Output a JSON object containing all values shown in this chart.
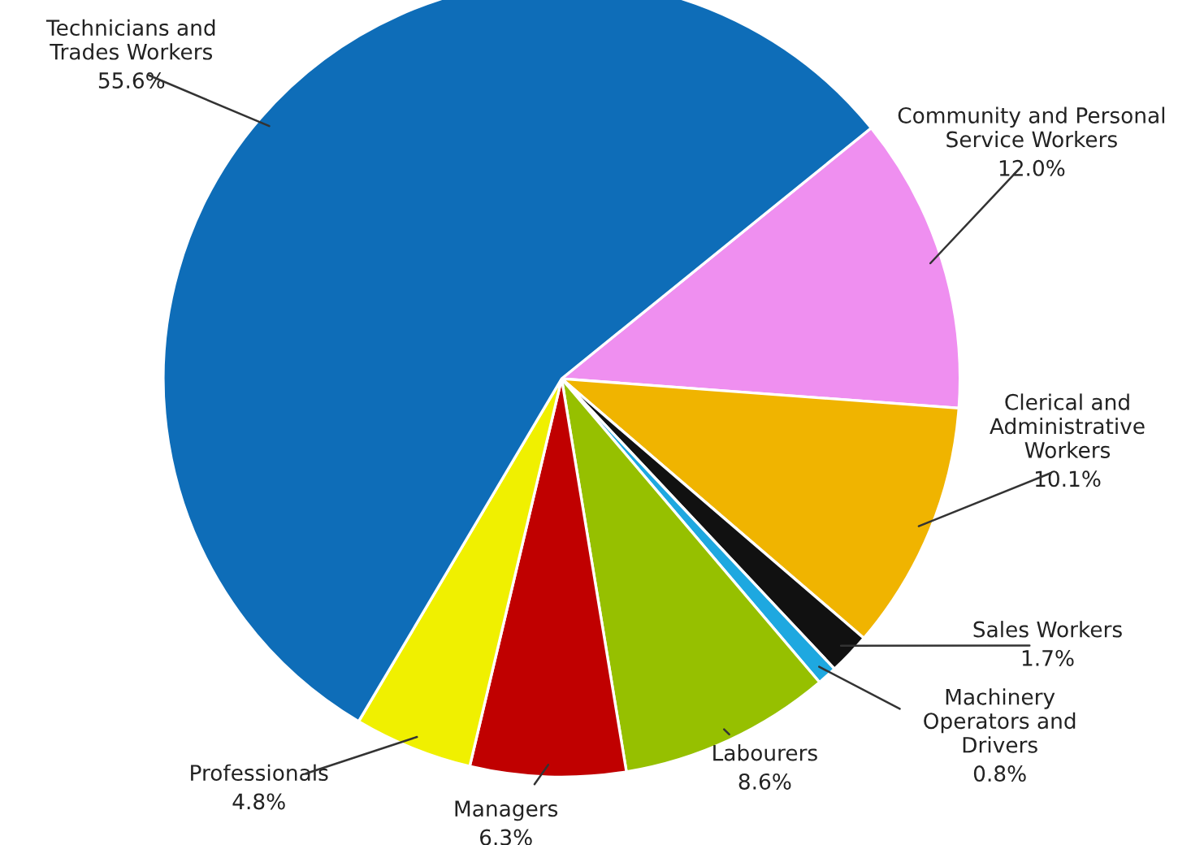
{
  "chart_data": {
    "type": "pie",
    "categories": [
      "Community and Personal Service Workers",
      "Clerical and Administrative Workers",
      "Sales Workers",
      "Machinery Operators and Drivers",
      "Labourers",
      "Managers",
      "Professionals",
      "Technicians and Trades Workers"
    ],
    "values": [
      12.0,
      10.1,
      1.7,
      0.8,
      8.6,
      6.3,
      4.8,
      55.6
    ],
    "colors": [
      "#ef8ff0",
      "#f0b400",
      "#111111",
      "#1ea8e0",
      "#96c000",
      "#c00000",
      "#f0f000",
      "#0e6db8"
    ],
    "value_labels": [
      "12.0%",
      "10.1%",
      "1.7%",
      "0.8%",
      "8.6%",
      "6.3%",
      "4.8%",
      "55.6%"
    ],
    "legend": false
  }
}
